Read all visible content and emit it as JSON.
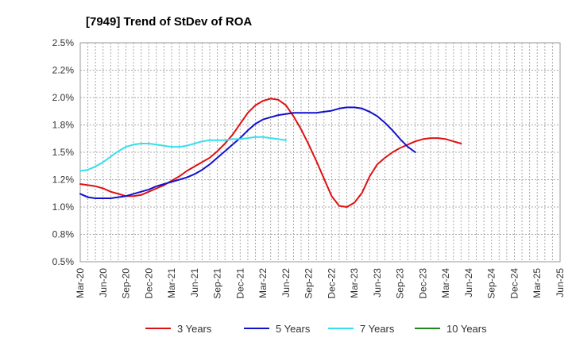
{
  "chart_data": {
    "type": "line",
    "title": "[7949]  Trend of StDev of ROA",
    "xlabel": "",
    "ylabel": "",
    "ylim": [
      0.5,
      2.5
    ],
    "yticks": [
      "0.5%",
      "0.8%",
      "1.0%",
      "1.2%",
      "1.5%",
      "1.8%",
      "2.0%",
      "2.2%",
      "2.5%"
    ],
    "xticks": [
      "Mar-20",
      "Jun-20",
      "Sep-20",
      "Dec-20",
      "Mar-21",
      "Jun-21",
      "Sep-21",
      "Dec-21",
      "Mar-22",
      "Jun-22",
      "Sep-22",
      "Dec-22",
      "Mar-23",
      "Jun-23",
      "Sep-23",
      "Dec-23",
      "Mar-24",
      "Jun-24",
      "Sep-24",
      "Dec-24",
      "Mar-25",
      "Jun-25"
    ],
    "grid": true,
    "legend_position": "bottom",
    "series": [
      {
        "name": "3 Years",
        "color": "#dd1111",
        "points": [
          [
            0,
            1.21
          ],
          [
            1,
            1.2
          ],
          [
            2,
            1.19
          ],
          [
            3,
            1.17
          ],
          [
            4,
            1.14
          ],
          [
            5,
            1.12
          ],
          [
            6,
            1.1
          ],
          [
            7,
            1.1
          ],
          [
            8,
            1.11
          ],
          [
            9,
            1.14
          ],
          [
            10,
            1.17
          ],
          [
            11,
            1.2
          ],
          [
            12,
            1.24
          ],
          [
            13,
            1.28
          ],
          [
            14,
            1.33
          ],
          [
            15,
            1.37
          ],
          [
            16,
            1.41
          ],
          [
            17,
            1.45
          ],
          [
            18,
            1.51
          ],
          [
            19,
            1.58
          ],
          [
            20,
            1.66
          ],
          [
            21,
            1.76
          ],
          [
            22,
            1.86
          ],
          [
            23,
            1.93
          ],
          [
            24,
            1.97
          ],
          [
            25,
            1.99
          ],
          [
            26,
            1.98
          ],
          [
            27,
            1.93
          ],
          [
            28,
            1.83
          ],
          [
            29,
            1.71
          ],
          [
            30,
            1.57
          ],
          [
            31,
            1.42
          ],
          [
            32,
            1.26
          ],
          [
            33,
            1.1
          ],
          [
            34,
            1.01
          ],
          [
            35,
            1.0
          ],
          [
            36,
            1.04
          ],
          [
            37,
            1.13
          ],
          [
            38,
            1.28
          ],
          [
            39,
            1.39
          ],
          [
            40,
            1.45
          ],
          [
            41,
            1.5
          ],
          [
            42,
            1.54
          ],
          [
            43,
            1.57
          ],
          [
            44,
            1.6
          ],
          [
            45,
            1.62
          ],
          [
            46,
            1.63
          ],
          [
            47,
            1.63
          ],
          [
            48,
            1.62
          ],
          [
            49,
            1.6
          ],
          [
            50,
            1.58
          ]
        ]
      },
      {
        "name": "5 Years",
        "color": "#1111cc",
        "points": [
          [
            0,
            1.12
          ],
          [
            1,
            1.09
          ],
          [
            2,
            1.08
          ],
          [
            3,
            1.08
          ],
          [
            4,
            1.08
          ],
          [
            5,
            1.09
          ],
          [
            6,
            1.1
          ],
          [
            7,
            1.12
          ],
          [
            8,
            1.14
          ],
          [
            9,
            1.16
          ],
          [
            10,
            1.19
          ],
          [
            11,
            1.21
          ],
          [
            12,
            1.23
          ],
          [
            13,
            1.25
          ],
          [
            14,
            1.27
          ],
          [
            15,
            1.3
          ],
          [
            16,
            1.34
          ],
          [
            17,
            1.39
          ],
          [
            18,
            1.45
          ],
          [
            19,
            1.51
          ],
          [
            20,
            1.57
          ],
          [
            21,
            1.63
          ],
          [
            22,
            1.7
          ],
          [
            23,
            1.76
          ],
          [
            24,
            1.8
          ],
          [
            25,
            1.82
          ],
          [
            26,
            1.84
          ],
          [
            27,
            1.85
          ],
          [
            28,
            1.86
          ],
          [
            29,
            1.86
          ],
          [
            30,
            1.86
          ],
          [
            31,
            1.86
          ],
          [
            32,
            1.87
          ],
          [
            33,
            1.88
          ],
          [
            34,
            1.9
          ],
          [
            35,
            1.91
          ],
          [
            36,
            1.91
          ],
          [
            37,
            1.9
          ],
          [
            38,
            1.87
          ],
          [
            39,
            1.83
          ],
          [
            40,
            1.77
          ],
          [
            41,
            1.7
          ],
          [
            42,
            1.62
          ],
          [
            43,
            1.55
          ],
          [
            44,
            1.5
          ]
        ]
      },
      {
        "name": "7 Years",
        "color": "#33e0ee",
        "points": [
          [
            0,
            1.33
          ],
          [
            1,
            1.34
          ],
          [
            2,
            1.37
          ],
          [
            3,
            1.41
          ],
          [
            4,
            1.46
          ],
          [
            5,
            1.51
          ],
          [
            6,
            1.55
          ],
          [
            7,
            1.57
          ],
          [
            8,
            1.58
          ],
          [
            9,
            1.58
          ],
          [
            10,
            1.57
          ],
          [
            11,
            1.56
          ],
          [
            12,
            1.55
          ],
          [
            13,
            1.55
          ],
          [
            14,
            1.56
          ],
          [
            15,
            1.58
          ],
          [
            16,
            1.6
          ],
          [
            17,
            1.61
          ],
          [
            18,
            1.61
          ],
          [
            19,
            1.61
          ],
          [
            20,
            1.62
          ],
          [
            21,
            1.62
          ],
          [
            22,
            1.63
          ],
          [
            23,
            1.64
          ],
          [
            24,
            1.64
          ],
          [
            25,
            1.63
          ],
          [
            26,
            1.62
          ],
          [
            27,
            1.61
          ]
        ]
      },
      {
        "name": "10 Years",
        "color": "#228822",
        "points": []
      }
    ]
  }
}
